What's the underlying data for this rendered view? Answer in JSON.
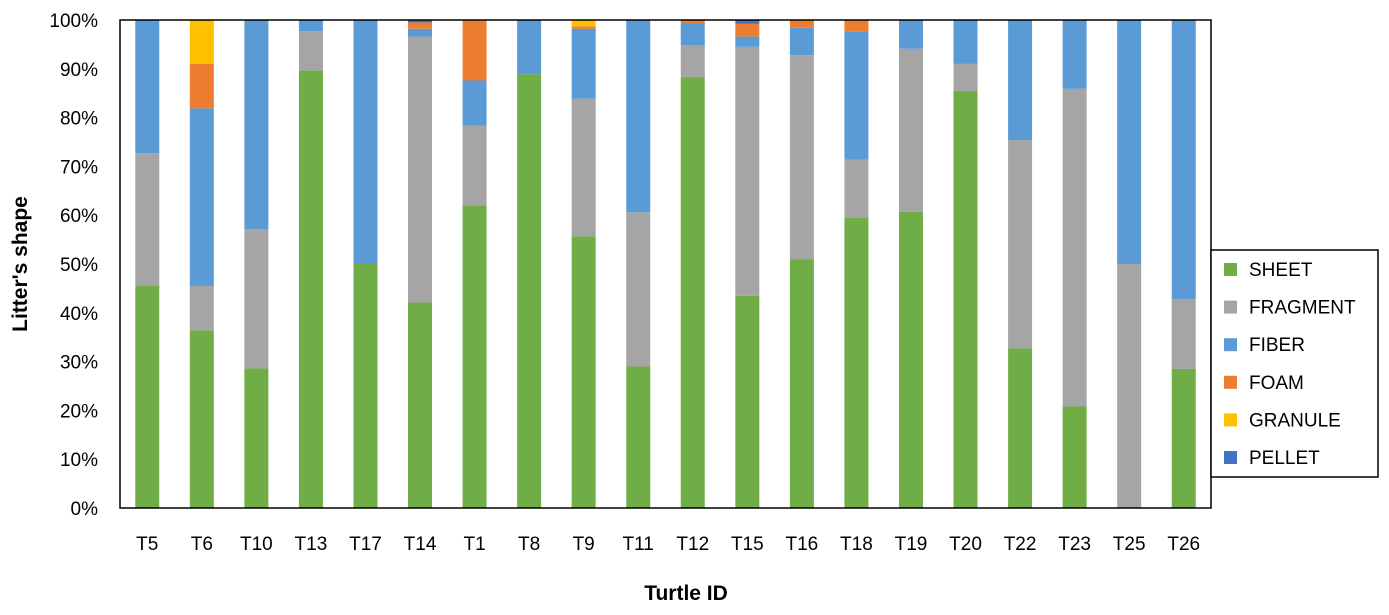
{
  "chart_data": {
    "type": "bar",
    "stacked": true,
    "percent": true,
    "xlabel": "Turtle ID",
    "ylabel": "Litter's shape",
    "ylim": [
      0,
      100
    ],
    "yticks": [
      "0%",
      "10%",
      "20%",
      "30%",
      "40%",
      "50%",
      "60%",
      "70%",
      "80%",
      "90%",
      "100%"
    ],
    "grid": false,
    "legend_position": "right",
    "categories": [
      "T5",
      "T6",
      "T10",
      "T13",
      "T17",
      "T14",
      "T1",
      "T8",
      "T9",
      "T11",
      "T12",
      "T15",
      "T16",
      "T18",
      "T19",
      "T20",
      "T22",
      "T23",
      "T25",
      "T26"
    ],
    "series": [
      {
        "name": "SHEET",
        "color": "#70ad47",
        "values": [
          45.5,
          36.4,
          28.6,
          89.7,
          50.0,
          42.1,
          62.0,
          88.9,
          55.7,
          29.0,
          88.3,
          43.5,
          51.0,
          59.5,
          60.7,
          85.5,
          32.7,
          20.8,
          0.0,
          28.5
        ]
      },
      {
        "name": "FRAGMENT",
        "color": "#a5a5a5",
        "values": [
          27.2,
          9.1,
          28.5,
          8.0,
          0.0,
          54.5,
          16.3,
          0.0,
          28.2,
          31.6,
          6.5,
          51.0,
          41.8,
          11.9,
          33.4,
          5.5,
          42.7,
          65.1,
          50.0,
          14.3
        ]
      },
      {
        "name": "FIBER",
        "color": "#5b9bd5",
        "values": [
          27.3,
          36.4,
          42.9,
          2.3,
          50.0,
          1.6,
          9.3,
          11.1,
          14.3,
          39.4,
          4.6,
          2.1,
          5.6,
          26.3,
          5.9,
          9.0,
          24.6,
          14.1,
          50.0,
          57.2
        ]
      },
      {
        "name": "FOAM",
        "color": "#ed7d31",
        "values": [
          0,
          9.1,
          0,
          0,
          0,
          1.3,
          12.4,
          0,
          0.5,
          0,
          0.6,
          2.6,
          1.6,
          2.3,
          0,
          0,
          0,
          0,
          0,
          0
        ]
      },
      {
        "name": "GRANULE",
        "color": "#ffc000",
        "values": [
          0,
          9.0,
          0,
          0,
          0,
          0,
          0,
          0,
          1.3,
          0,
          0,
          0,
          0,
          0,
          0,
          0,
          0,
          0,
          0,
          0
        ]
      },
      {
        "name": "PELLET",
        "color": "#4472c4",
        "values": [
          0,
          0,
          0,
          0,
          0,
          0.5,
          0,
          0,
          0,
          0,
          0,
          0.8,
          0,
          0,
          0,
          0,
          0,
          0,
          0,
          0
        ]
      }
    ]
  }
}
